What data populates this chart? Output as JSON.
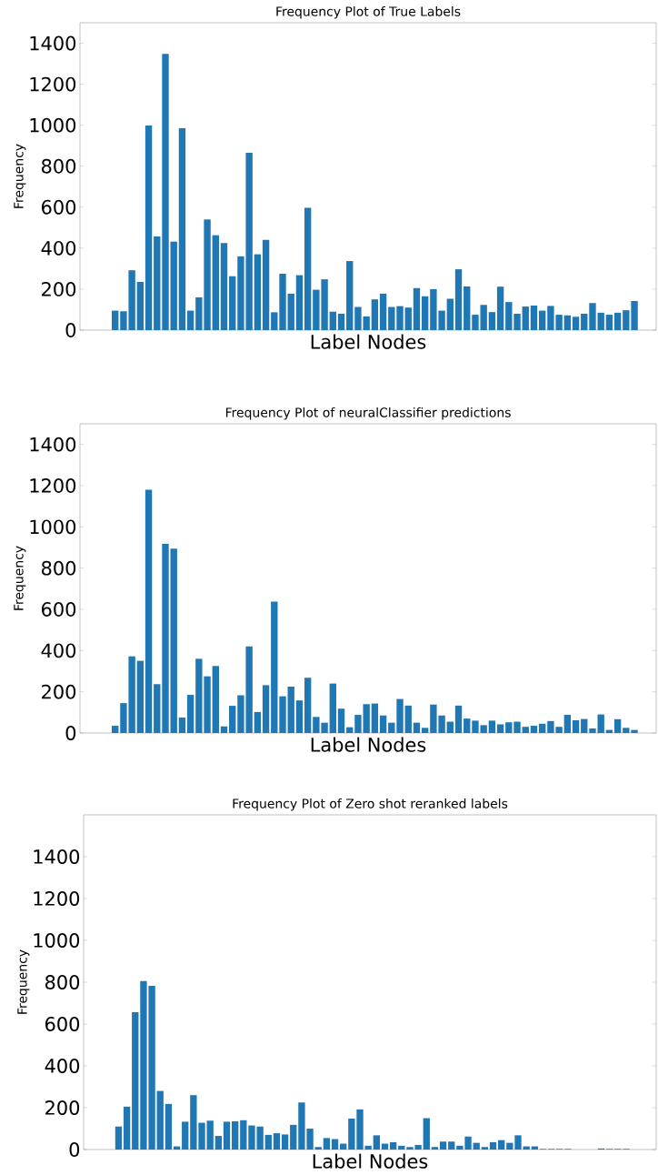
{
  "chart_data": [
    {
      "type": "bar",
      "title": "Frequency Plot of True Labels",
      "xlabel": "Label Nodes",
      "ylabel": "Frequency",
      "color": "#1f77b4",
      "ylim": [
        0,
        1500
      ],
      "yticks": [
        0,
        200,
        400,
        600,
        800,
        1000,
        1200,
        1400
      ],
      "tick_labels": "y",
      "categories": [
        null,
        null,
        null,
        null,
        null,
        null,
        null,
        null,
        null,
        null,
        null,
        null,
        null,
        null,
        null,
        null,
        null,
        null,
        null,
        null,
        null,
        null,
        null,
        null,
        null,
        null,
        null,
        null,
        null,
        null,
        null,
        null,
        null,
        null,
        null,
        null,
        null,
        null,
        null,
        null,
        null,
        null,
        null,
        null,
        null,
        null,
        null,
        null,
        null,
        null,
        null,
        null,
        null,
        null,
        null,
        null,
        null,
        null,
        null,
        null,
        null,
        null,
        null
      ],
      "values": [
        95,
        92,
        292,
        235,
        998,
        457,
        1348,
        432,
        985,
        95,
        160,
        540,
        463,
        425,
        263,
        360,
        865,
        370,
        440,
        87,
        275,
        178,
        268,
        597,
        197,
        248,
        90,
        80,
        337,
        113,
        67,
        150,
        178,
        113,
        117,
        110,
        205,
        165,
        200,
        95,
        153,
        297,
        213,
        75,
        123,
        88,
        212,
        137,
        80,
        115,
        120,
        95,
        118,
        75,
        72,
        65,
        80,
        132,
        85,
        75,
        85,
        97,
        142
      ]
    },
    {
      "type": "bar",
      "title": "Frequency Plot of neuralClassifier predictions",
      "xlabel": "Label Nodes",
      "ylabel": "Frequency",
      "color": "#1f77b4",
      "ylim": [
        0,
        1500
      ],
      "yticks": [
        0,
        200,
        400,
        600,
        800,
        1000,
        1200,
        1400
      ],
      "tick_labels": "y",
      "categories": [
        null,
        null,
        null,
        null,
        null,
        null,
        null,
        null,
        null,
        null,
        null,
        null,
        null,
        null,
        null,
        null,
        null,
        null,
        null,
        null,
        null,
        null,
        null,
        null,
        null,
        null,
        null,
        null,
        null,
        null,
        null,
        null,
        null,
        null,
        null,
        null,
        null,
        null,
        null,
        null,
        null,
        null,
        null,
        null,
        null,
        null,
        null,
        null,
        null,
        null,
        null,
        null,
        null,
        null,
        null,
        null,
        null,
        null,
        null,
        null,
        null,
        null,
        null
      ],
      "values": [
        35,
        145,
        372,
        350,
        1180,
        237,
        918,
        895,
        75,
        185,
        360,
        275,
        325,
        32,
        132,
        183,
        420,
        102,
        232,
        637,
        178,
        225,
        158,
        268,
        78,
        50,
        240,
        118,
        28,
        88,
        140,
        143,
        85,
        50,
        165,
        133,
        50,
        25,
        138,
        85,
        55,
        133,
        70,
        60,
        38,
        60,
        42,
        52,
        55,
        30,
        35,
        45,
        58,
        30,
        88,
        62,
        68,
        22,
        90,
        15,
        67,
        25,
        15
      ]
    },
    {
      "type": "bar",
      "title": "Frequency Plot of Zero shot reranked labels",
      "xlabel": "Label Nodes",
      "ylabel": "Frequency",
      "color": "#1f77b4",
      "ylim": [
        0,
        1600
      ],
      "yticks": [
        0,
        200,
        400,
        600,
        800,
        1000,
        1200,
        1400
      ],
      "tick_labels": "y",
      "categories": [
        null,
        null,
        null,
        null,
        null,
        null,
        null,
        null,
        null,
        null,
        null,
        null,
        null,
        null,
        null,
        null,
        null,
        null,
        null,
        null,
        null,
        null,
        null,
        null,
        null,
        null,
        null,
        null,
        null,
        null,
        null,
        null,
        null,
        null,
        null,
        null,
        null,
        null,
        null,
        null,
        null,
        null,
        null,
        null,
        null,
        null,
        null,
        null,
        null,
        null,
        null,
        null,
        null,
        null,
        null,
        null,
        null,
        null,
        null,
        null,
        null,
        null,
        null
      ],
      "values": [
        110,
        205,
        657,
        805,
        783,
        280,
        218,
        15,
        133,
        260,
        128,
        138,
        65,
        133,
        135,
        140,
        115,
        110,
        70,
        78,
        72,
        118,
        225,
        100,
        12,
        55,
        50,
        28,
        148,
        192,
        18,
        68,
        28,
        35,
        18,
        12,
        22,
        150,
        12,
        38,
        38,
        18,
        62,
        32,
        12,
        35,
        45,
        32,
        68,
        15,
        15,
        3,
        3,
        3,
        3,
        0,
        0,
        0,
        5,
        3,
        3,
        3,
        0
      ]
    }
  ]
}
